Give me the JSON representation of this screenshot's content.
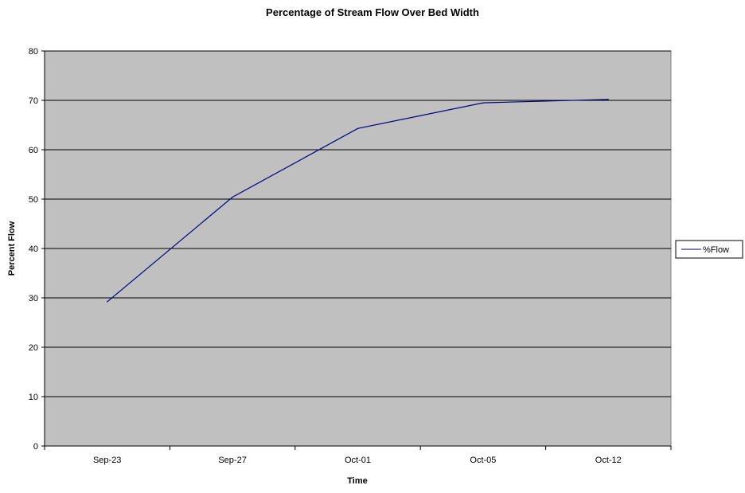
{
  "chart_data": {
    "type": "line",
    "title": "Percentage of Stream Flow Over Bed Width",
    "xlabel": "Time",
    "ylabel": "Percent Flow",
    "categories": [
      "Sep-23",
      "Sep-27",
      "Oct-01",
      "Oct-05",
      "Oct-12"
    ],
    "series": [
      {
        "name": "%Flow",
        "values": [
          29.2,
          50.4,
          64.3,
          69.5,
          70.2
        ],
        "color": "#000080"
      }
    ],
    "ylim": [
      0,
      80
    ],
    "yticks": [
      0,
      10,
      20,
      30,
      40,
      50,
      60,
      70,
      80
    ],
    "grid": true,
    "legend": "right",
    "plot_background": "#c0c0c0"
  }
}
